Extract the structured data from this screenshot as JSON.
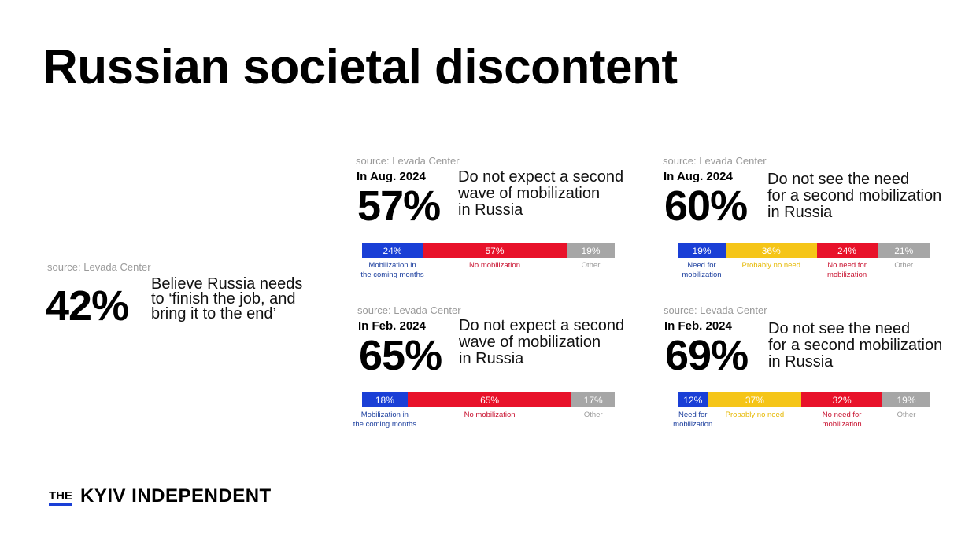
{
  "title": "Russian societal discontent",
  "colors": {
    "blue": "#1a3fd6",
    "red": "#e8122a",
    "yellow": "#f5c518",
    "gray": "#a6a6a6",
    "label_blue": "#1c3f9e",
    "label_red": "#c8102e",
    "label_yellow": "#e6b800",
    "label_gray": "#9a9a9a"
  },
  "left_stat": {
    "source": "source: Levada Center",
    "value": "42%",
    "statement_lines": [
      "Believe Russia needs",
      "to ‘finish the job, and",
      "bring it to the end’"
    ]
  },
  "logo": {
    "the": "THE",
    "name": "KYIV INDEPENDENT"
  },
  "chart_data": [
    {
      "type": "bar",
      "title": "In Aug. 2024",
      "source": "source: Levada Center",
      "headline_value": "57%",
      "statement_lines": [
        "Do not expect a second",
        "wave of mobilization",
        "in Russia"
      ],
      "segments": [
        {
          "value": 24,
          "text": "24%",
          "label": "Mobilization in\nthe coming months",
          "color": "blue"
        },
        {
          "value": 57,
          "text": "57%",
          "label": "No mobilization",
          "color": "red"
        },
        {
          "value": 19,
          "text": "19%",
          "label": "Other",
          "color": "gray"
        }
      ]
    },
    {
      "type": "bar",
      "title": "In Aug. 2024",
      "source": "source: Levada Center",
      "headline_value": "60%",
      "statement_lines": [
        "Do not see the need",
        "for a second mobilization",
        "in Russia"
      ],
      "segments": [
        {
          "value": 19,
          "text": "19%",
          "label": "Need for\nmobilization",
          "color": "blue"
        },
        {
          "value": 36,
          "text": "36%",
          "label": "Probably no need",
          "color": "yellow"
        },
        {
          "value": 24,
          "text": "24%",
          "label": "No need for\nmobilization",
          "color": "red"
        },
        {
          "value": 21,
          "text": "21%",
          "label": "Other",
          "color": "gray"
        }
      ]
    },
    {
      "type": "bar",
      "title": "In Feb. 2024",
      "source": "source: Levada Center",
      "headline_value": "65%",
      "statement_lines": [
        "Do not expect a second",
        "wave of mobilization",
        "in Russia"
      ],
      "segments": [
        {
          "value": 18,
          "text": "18%",
          "label": "Mobilization in\nthe coming months",
          "color": "blue"
        },
        {
          "value": 65,
          "text": "65%",
          "label": "No mobilization",
          "color": "red"
        },
        {
          "value": 17,
          "text": "17%",
          "label": "Other",
          "color": "gray"
        }
      ]
    },
    {
      "type": "bar",
      "title": "In Feb. 2024",
      "source": "source: Levada Center",
      "headline_value": "69%",
      "statement_lines": [
        "Do not see the need",
        "for a second mobilization",
        "in Russia"
      ],
      "segments": [
        {
          "value": 12,
          "text": "12%",
          "label": "Need for\nmobilization",
          "color": "blue"
        },
        {
          "value": 37,
          "text": "37%",
          "label": "Probably no need",
          "color": "yellow"
        },
        {
          "value": 32,
          "text": "32%",
          "label": "No need for\nmobilization",
          "color": "red"
        },
        {
          "value": 19,
          "text": "19%",
          "label": "Other",
          "color": "gray"
        }
      ]
    }
  ]
}
